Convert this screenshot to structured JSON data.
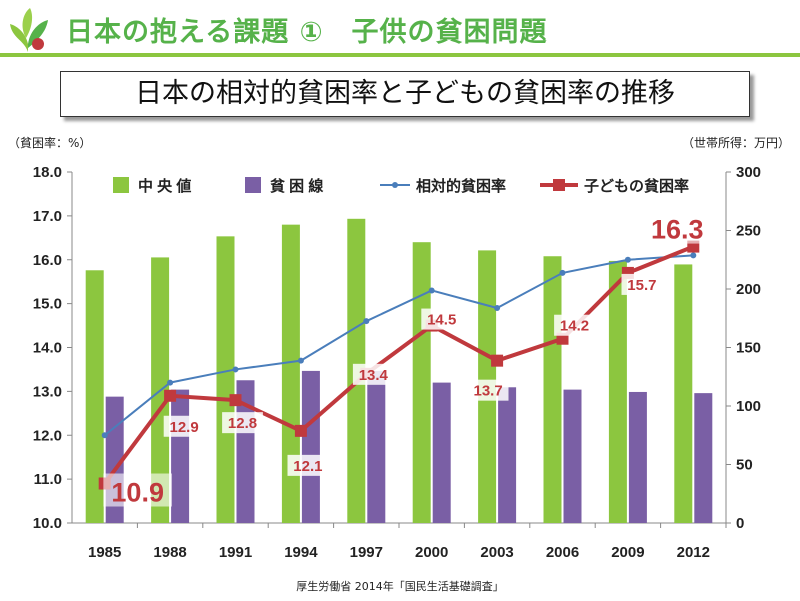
{
  "header": {
    "title": "日本の抱える課題 ①　子供の貧困問題",
    "subtitle": "日本の相対的貧困率と子どもの貧困率の推移"
  },
  "units": {
    "left": "（貧困率：%）",
    "right": "（世帯所得：万円）"
  },
  "source": "厚生労働省 2014年「国民生活基礎調査」",
  "colors": {
    "median": "#8cc63f",
    "poverty_line": "#7a5fa5",
    "relative": "#4a7ebb",
    "child": "#c0393d",
    "accent": "#56b24a"
  },
  "chart_data": {
    "type": "bar",
    "categories": [
      "1985",
      "1988",
      "1991",
      "1994",
      "1997",
      "2000",
      "2003",
      "2006",
      "2009",
      "2012"
    ],
    "series": [
      {
        "name": "中 央 値",
        "type": "bar",
        "axis": "right",
        "values": [
          216,
          227,
          245,
          255,
          260,
          240,
          233,
          228,
          224,
          221
        ]
      },
      {
        "name": "貧 困 線",
        "type": "bar",
        "axis": "right",
        "values": [
          108,
          114,
          122,
          130,
          130,
          120,
          116,
          114,
          112,
          111
        ]
      },
      {
        "name": "相対的貧困率",
        "type": "line",
        "axis": "left",
        "values": [
          12.0,
          13.2,
          13.5,
          13.7,
          14.6,
          15.3,
          14.9,
          15.7,
          16.0,
          16.1
        ]
      },
      {
        "name": "子どもの貧困率",
        "type": "line",
        "axis": "left",
        "values": [
          10.9,
          12.9,
          12.8,
          12.1,
          13.4,
          14.5,
          13.7,
          14.2,
          15.7,
          16.3
        ]
      }
    ],
    "data_labels": [
      "10.9",
      "12.9",
      "12.8",
      "12.1",
      "13.4",
      "14.5",
      "13.7",
      "14.2",
      "15.7",
      "16.3"
    ],
    "y_left": {
      "min": 10.0,
      "max": 18.0,
      "ticks": [
        "10.0",
        "11.0",
        "12.0",
        "13.0",
        "14.0",
        "15.0",
        "16.0",
        "17.0",
        "18.0"
      ]
    },
    "y_right": {
      "min": 0,
      "max": 300,
      "ticks": [
        "0",
        "50",
        "100",
        "150",
        "200",
        "250",
        "300"
      ]
    },
    "grid": false,
    "legend": "top"
  }
}
